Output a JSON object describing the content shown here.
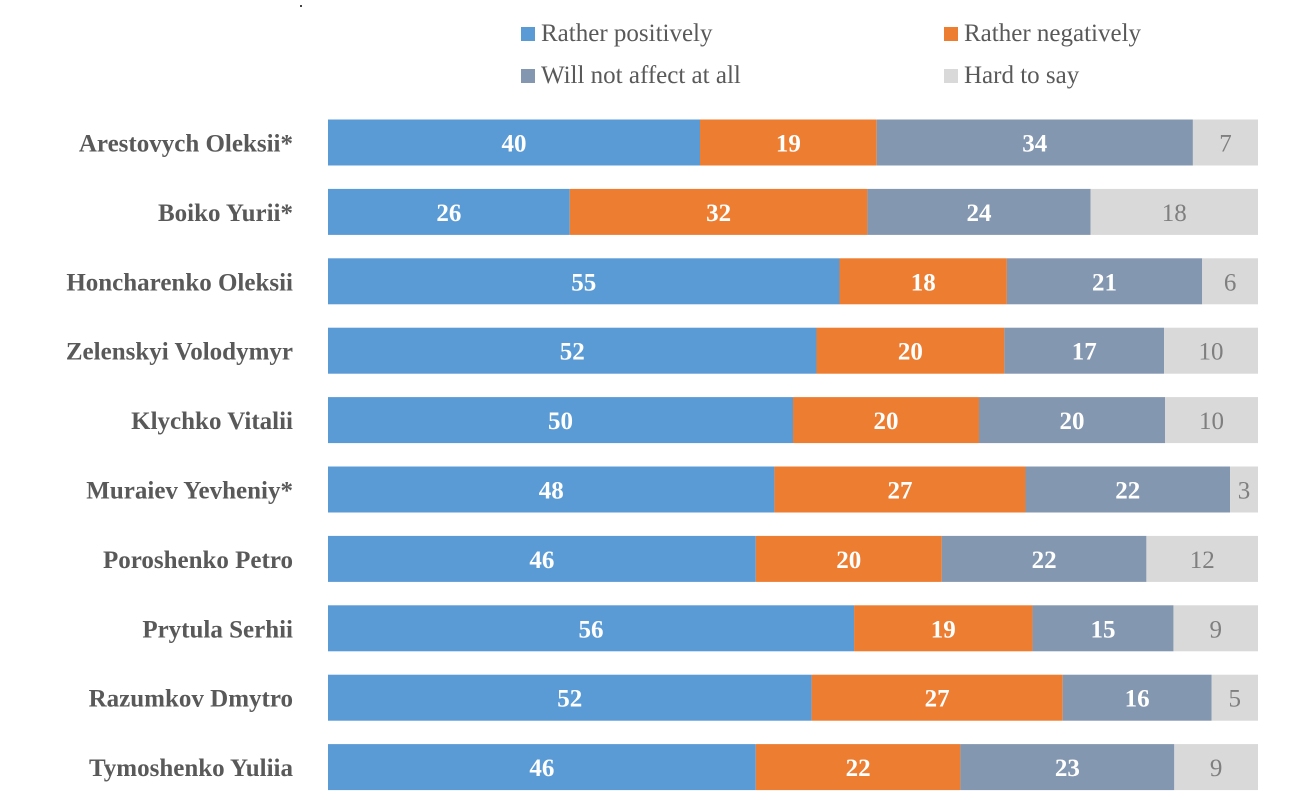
{
  "chart_data": {
    "type": "bar",
    "orientation": "horizontal",
    "stacked": true,
    "normalized_to_100": true,
    "title": "",
    "xlabel": "",
    "ylabel": "",
    "legend_position": "top",
    "grid": false,
    "categories": [
      "Arestovych Oleksii*",
      "Boiko Yurii*",
      "Honcharenko Oleksii",
      "Zelenskyi Volodymyr",
      "Klychko Vitalii",
      "Muraiev Yevheniy*",
      "Poroshenko Petro",
      "Prytula Serhii",
      "Razumkov Dmytro",
      "Tymoshenko Yuliia"
    ],
    "series": [
      {
        "name": "Rather positively",
        "color": "#5B9BD5",
        "label_color": "#FFFFFF",
        "values": [
          40,
          26,
          55,
          52,
          50,
          48,
          46,
          56,
          52,
          46
        ]
      },
      {
        "name": "Rather negatively",
        "color": "#ED7D31",
        "label_color": "#FFFFFF",
        "values": [
          19,
          32,
          18,
          20,
          20,
          27,
          20,
          19,
          27,
          22
        ]
      },
      {
        "name": "Will not affect at all",
        "color": "#8497B0",
        "label_color": "#FFFFFF",
        "values": [
          34,
          24,
          21,
          17,
          20,
          22,
          22,
          15,
          16,
          23
        ]
      },
      {
        "name": "Hard to say",
        "color": "#D9D9D9",
        "label_color": "#7F7F7F",
        "values": [
          7,
          18,
          6,
          10,
          10,
          3,
          12,
          9,
          5,
          9
        ]
      }
    ],
    "legend_order": [
      [
        "Rather positively",
        "Rather negatively"
      ],
      [
        "Will not affect at all",
        "Hard to say"
      ]
    ]
  }
}
